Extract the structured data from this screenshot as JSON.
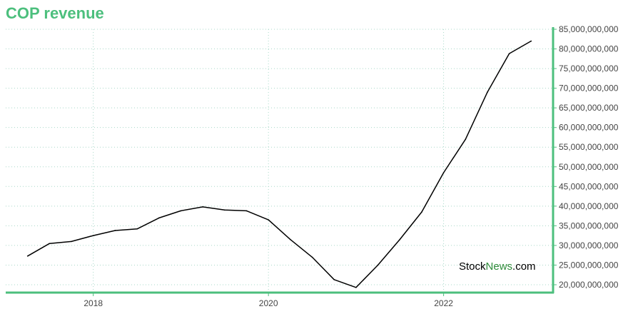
{
  "title": "COP revenue",
  "watermark": {
    "part1": "Stock",
    "part2": "News",
    "part3": ".com"
  },
  "colors": {
    "title": "#4cbf7d",
    "axis": "#4cbf7d",
    "grid": "#a8d8c8",
    "line": "#000000",
    "watermark_accent": "#2e8b3a"
  },
  "chart_data": {
    "type": "line",
    "title": "COP revenue",
    "xlabel": "",
    "ylabel": "",
    "x_tick_labels": [
      "2018",
      "2020",
      "2022"
    ],
    "x_tick_values": [
      2018.0,
      2020.0,
      2022.0
    ],
    "y_tick_labels": [
      "20,000,000,000",
      "25,000,000,000",
      "30,000,000,000",
      "35,000,000,000",
      "40,000,000,000",
      "45,000,000,000",
      "50,000,000,000",
      "55,000,000,000",
      "60,000,000,000",
      "65,000,000,000",
      "70,000,000,000",
      "75,000,000,000",
      "80,000,000,000",
      "85,000,000,000"
    ],
    "y_tick_values": [
      20000000000,
      25000000000,
      30000000000,
      35000000000,
      40000000000,
      45000000000,
      50000000000,
      55000000000,
      60000000000,
      65000000000,
      70000000000,
      75000000000,
      80000000000,
      85000000000
    ],
    "ylim": [
      18000000000,
      85000000000
    ],
    "xlim": [
      2017.0,
      2023.25
    ],
    "y_axis_position": "right",
    "grid": true,
    "series": [
      {
        "x": [
          2017.25,
          2017.5,
          2017.75,
          2018.0,
          2018.25,
          2018.5,
          2018.75,
          2019.0,
          2019.25,
          2019.5,
          2019.75,
          2020.0,
          2020.25,
          2020.5,
          2020.75,
          2021.0,
          2021.25,
          2021.5,
          2021.75,
          2022.0,
          2022.25,
          2022.5,
          2022.75,
          2023.0
        ],
        "values": [
          27300000000,
          30500000000,
          31000000000,
          32500000000,
          33800000000,
          34200000000,
          37000000000,
          38800000000,
          39800000000,
          39000000000,
          38800000000,
          36500000000,
          31500000000,
          27000000000,
          21300000000,
          19300000000,
          25000000000,
          31500000000,
          38500000000,
          48500000000,
          57000000000,
          69000000000,
          78800000000,
          82000000000
        ]
      }
    ]
  }
}
